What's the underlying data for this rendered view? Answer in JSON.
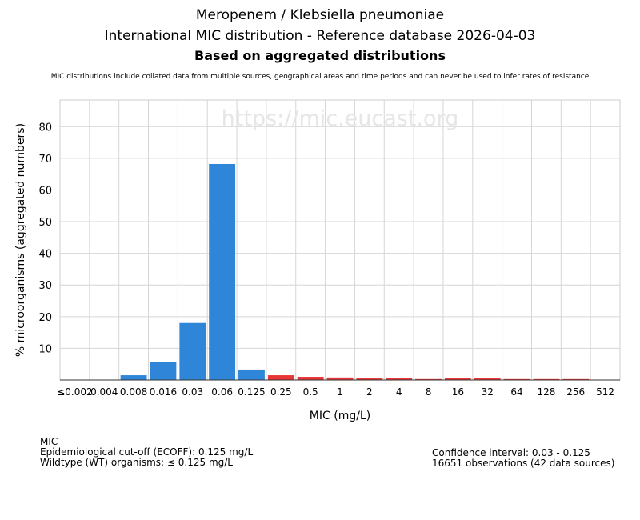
{
  "chart_data": {
    "type": "bar",
    "title": "Meropenem / Klebsiella pneumoniae",
    "subtitle": "International MIC distribution - Reference database 2026-04-03",
    "subtitle2": "Based on aggregated distributions",
    "note": "MIC distributions include collated data from multiple sources, geographical areas and time periods and can never be used to infer rates of resistance",
    "watermark": "https://mic.eucast.org",
    "xlabel": "MIC (mg/L)",
    "ylabel": "% microorganisms (aggregated numbers)",
    "ylim": [
      0,
      88.4
    ],
    "yticks": [
      10,
      20,
      30,
      40,
      50,
      60,
      70,
      80
    ],
    "categories": [
      "≤0.002",
      "0.004",
      "0.008",
      "0.016",
      "0.03",
      "0.06",
      "0.125",
      "0.25",
      "0.5",
      "1",
      "2",
      "4",
      "8",
      "16",
      "32",
      "64",
      "128",
      "256",
      "512"
    ],
    "values": [
      0,
      0,
      1.5,
      5.8,
      18,
      68.2,
      3.3,
      1.5,
      1.0,
      0.8,
      0.5,
      0.5,
      0.3,
      0.5,
      0.5,
      0.3,
      0.3,
      0.3,
      0
    ],
    "wildtype_color": "#2f86d8",
    "nonwildtype_color": "#e83535",
    "ecoff_index": 6,
    "grid": true
  },
  "info": {
    "mic_label": "MIC",
    "ecoff": "Epidemiological cut-off (ECOFF): 0.125 mg/L",
    "wt": "Wildtype (WT) organisms: ≤ 0.125 mg/L",
    "ci": "Confidence interval: 0.03 - 0.125",
    "obs": "16651 observations (42 data sources)"
  }
}
